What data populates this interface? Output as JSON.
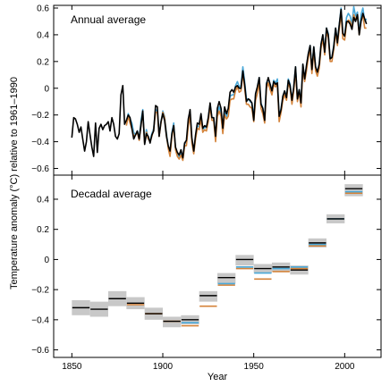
{
  "chart_data": [
    {
      "type": "line",
      "title": "Annual average",
      "ylabel": "Temperature anomaly (°C) relative to 1961–1990",
      "xlabel": "Year",
      "xlim": [
        1840,
        2020
      ],
      "ylim": [
        -0.65,
        0.62
      ],
      "xticks": [
        1850,
        1900,
        1950,
        2000
      ],
      "yticks": [
        -0.6,
        -0.4,
        -0.2,
        0,
        0.2,
        0.4,
        0.6
      ],
      "grid": false,
      "colors": {
        "black": "#000000",
        "orange": "#d4833a",
        "blue": "#4aa8d8"
      },
      "series": [
        {
          "color": "#000000",
          "x": [
            1850,
            1851,
            1852,
            1853,
            1854,
            1855,
            1856,
            1857,
            1858,
            1859,
            1860,
            1861,
            1862,
            1863,
            1864,
            1865,
            1866,
            1867,
            1868,
            1869,
            1870,
            1871,
            1872,
            1873,
            1874,
            1875,
            1876,
            1877,
            1878,
            1879,
            1880,
            1881,
            1882,
            1883,
            1884,
            1885,
            1886,
            1887,
            1888,
            1889,
            1890,
            1891,
            1892,
            1893,
            1894,
            1895,
            1896,
            1897,
            1898,
            1899,
            1900,
            1901,
            1902,
            1903,
            1904,
            1905,
            1906,
            1907,
            1908,
            1909,
            1910,
            1911,
            1912,
            1913,
            1914,
            1915,
            1916,
            1917,
            1918,
            1919,
            1920,
            1921,
            1922,
            1923,
            1924,
            1925,
            1926,
            1927,
            1928,
            1929,
            1930,
            1931,
            1932,
            1933,
            1934,
            1935,
            1936,
            1937,
            1938,
            1939,
            1940,
            1941,
            1942,
            1943,
            1944,
            1945,
            1946,
            1947,
            1948,
            1949,
            1950,
            1951,
            1952,
            1953,
            1954,
            1955,
            1956,
            1957,
            1958,
            1959,
            1960,
            1961,
            1962,
            1963,
            1964,
            1965,
            1966,
            1967,
            1968,
            1969,
            1970,
            1971,
            1972,
            1973,
            1974,
            1975,
            1976,
            1977,
            1978,
            1979,
            1980,
            1981,
            1982,
            1983,
            1984,
            1985,
            1986,
            1987,
            1988,
            1989,
            1990,
            1991,
            1992,
            1993,
            1994,
            1995,
            1996,
            1997,
            1998,
            1999,
            2000,
            2001,
            2002,
            2003,
            2004,
            2005,
            2006,
            2007,
            2008,
            2009,
            2010,
            2011,
            2012
          ],
          "y": [
            -0.37,
            -0.22,
            -0.23,
            -0.27,
            -0.33,
            -0.29,
            -0.38,
            -0.47,
            -0.4,
            -0.25,
            -0.35,
            -0.44,
            -0.51,
            -0.26,
            -0.48,
            -0.3,
            -0.27,
            -0.31,
            -0.28,
            -0.27,
            -0.25,
            -0.32,
            -0.22,
            -0.27,
            -0.36,
            -0.38,
            -0.34,
            -0.05,
            0.02,
            -0.27,
            -0.24,
            -0.2,
            -0.22,
            -0.3,
            -0.38,
            -0.35,
            -0.32,
            -0.38,
            -0.28,
            -0.17,
            -0.42,
            -0.34,
            -0.36,
            -0.41,
            -0.35,
            -0.32,
            -0.13,
            -0.14,
            -0.36,
            -0.25,
            -0.19,
            -0.24,
            -0.36,
            -0.43,
            -0.47,
            -0.34,
            -0.28,
            -0.44,
            -0.48,
            -0.5,
            -0.46,
            -0.52,
            -0.41,
            -0.39,
            -0.23,
            -0.16,
            -0.37,
            -0.47,
            -0.35,
            -0.26,
            -0.27,
            -0.19,
            -0.3,
            -0.28,
            -0.29,
            -0.22,
            -0.11,
            -0.22,
            -0.22,
            -0.36,
            -0.15,
            -0.1,
            -0.15,
            -0.3,
            -0.14,
            -0.19,
            -0.15,
            -0.03,
            -0.01,
            -0.03,
            0.01,
            0.02,
            0.0,
            0.0,
            0.13,
            0.03,
            -0.1,
            -0.08,
            -0.09,
            -0.11,
            -0.24,
            -0.04,
            0.01,
            0.08,
            -0.12,
            -0.15,
            -0.24,
            0.03,
            0.08,
            0.03,
            -0.02,
            0.05,
            0.03,
            0.04,
            -0.21,
            -0.16,
            -0.06,
            -0.02,
            -0.07,
            0.06,
            0.02,
            -0.09,
            0.01,
            0.16,
            -0.08,
            -0.01,
            -0.11,
            0.18,
            0.07,
            0.17,
            0.26,
            0.32,
            0.14,
            0.31,
            0.16,
            0.12,
            0.18,
            0.33,
            0.4,
            0.27,
            0.45,
            0.4,
            0.22,
            0.23,
            0.31,
            0.45,
            0.34,
            0.47,
            0.59,
            0.41,
            0.39,
            0.5,
            0.5,
            0.48,
            0.44,
            0.53,
            0.5,
            0.55,
            0.4,
            0.5,
            0.56,
            0.52,
            0.48
          ]
        },
        {
          "color": "#4aa8d8",
          "x": [
            1880,
            1881,
            1882,
            1883,
            1884,
            1885,
            1886,
            1887,
            1888,
            1889,
            1890,
            1891,
            1892,
            1893,
            1894,
            1895,
            1896,
            1897,
            1898,
            1899,
            1900,
            1901,
            1902,
            1903,
            1904,
            1905,
            1906,
            1907,
            1908,
            1909,
            1910,
            1911,
            1912,
            1913,
            1914,
            1915,
            1916,
            1917,
            1918,
            1919,
            1920,
            1921,
            1922,
            1923,
            1924,
            1925,
            1926,
            1927,
            1928,
            1929,
            1930,
            1931,
            1932,
            1933,
            1934,
            1935,
            1936,
            1937,
            1938,
            1939,
            1940,
            1941,
            1942,
            1943,
            1944,
            1945,
            1946,
            1947,
            1948,
            1949,
            1950,
            1951,
            1952,
            1953,
            1954,
            1955,
            1956,
            1957,
            1958,
            1959,
            1960,
            1961,
            1962,
            1963,
            1964,
            1965,
            1966,
            1967,
            1968,
            1969,
            1970,
            1971,
            1972,
            1973,
            1974,
            1975,
            1976,
            1977,
            1978,
            1979,
            1980,
            1981,
            1982,
            1983,
            1984,
            1985,
            1986,
            1987,
            1988,
            1989,
            1990,
            1991,
            1992,
            1993,
            1994,
            1995,
            1996,
            1997,
            1998,
            1999,
            2000,
            2001,
            2002,
            2003,
            2004,
            2005,
            2006,
            2007,
            2008,
            2009,
            2010,
            2011,
            2012
          ],
          "y": [
            -0.25,
            -0.19,
            -0.23,
            -0.26,
            -0.33,
            -0.35,
            -0.32,
            -0.37,
            -0.24,
            -0.16,
            -0.4,
            -0.31,
            -0.38,
            -0.39,
            -0.34,
            -0.3,
            -0.16,
            -0.17,
            -0.34,
            -0.25,
            -0.17,
            -0.21,
            -0.33,
            -0.44,
            -0.5,
            -0.33,
            -0.26,
            -0.45,
            -0.5,
            -0.52,
            -0.49,
            -0.53,
            -0.41,
            -0.41,
            -0.26,
            -0.19,
            -0.39,
            -0.48,
            -0.37,
            -0.28,
            -0.29,
            -0.21,
            -0.31,
            -0.29,
            -0.3,
            -0.23,
            -0.12,
            -0.22,
            -0.22,
            -0.38,
            -0.18,
            -0.14,
            -0.18,
            -0.32,
            -0.17,
            -0.21,
            -0.18,
            -0.06,
            -0.05,
            -0.05,
            0.02,
            0.05,
            0.01,
            0.02,
            0.16,
            0.05,
            -0.08,
            -0.08,
            -0.1,
            -0.11,
            -0.21,
            -0.05,
            0.01,
            0.08,
            -0.11,
            -0.15,
            -0.22,
            0.04,
            0.07,
            0.03,
            -0.02,
            0.06,
            0.04,
            0.07,
            -0.21,
            -0.15,
            -0.06,
            -0.02,
            -0.06,
            0.07,
            0.03,
            -0.09,
            0.01,
            0.16,
            -0.07,
            -0.01,
            -0.11,
            0.18,
            0.07,
            0.16,
            0.26,
            0.32,
            0.14,
            0.31,
            0.16,
            0.12,
            0.18,
            0.33,
            0.4,
            0.28,
            0.45,
            0.41,
            0.23,
            0.23,
            0.32,
            0.45,
            0.35,
            0.47,
            0.6,
            0.4,
            0.39,
            0.53,
            0.56,
            0.54,
            0.48,
            0.61,
            0.54,
            0.57,
            0.42,
            0.55,
            0.6,
            0.5,
            0.52
          ]
        },
        {
          "color": "#d4833a",
          "x": [
            1880,
            1881,
            1882,
            1883,
            1884,
            1885,
            1886,
            1887,
            1888,
            1889,
            1890,
            1891,
            1892,
            1893,
            1894,
            1895,
            1896,
            1897,
            1898,
            1899,
            1900,
            1901,
            1902,
            1903,
            1904,
            1905,
            1906,
            1907,
            1908,
            1909,
            1910,
            1911,
            1912,
            1913,
            1914,
            1915,
            1916,
            1917,
            1918,
            1919,
            1920,
            1921,
            1922,
            1923,
            1924,
            1925,
            1926,
            1927,
            1928,
            1929,
            1930,
            1931,
            1932,
            1933,
            1934,
            1935,
            1936,
            1937,
            1938,
            1939,
            1940,
            1941,
            1942,
            1943,
            1944,
            1945,
            1946,
            1947,
            1948,
            1949,
            1950,
            1951,
            1952,
            1953,
            1954,
            1955,
            1956,
            1957,
            1958,
            1959,
            1960,
            1961,
            1962,
            1963,
            1964,
            1965,
            1966,
            1967,
            1968,
            1969,
            1970,
            1971,
            1972,
            1973,
            1974,
            1975,
            1976,
            1977,
            1978,
            1979,
            1980,
            1981,
            1982,
            1983,
            1984,
            1985,
            1986,
            1987,
            1988,
            1989,
            1990,
            1991,
            1992,
            1993,
            1994,
            1995,
            1996,
            1997,
            1998,
            1999,
            2000,
            2001,
            2002,
            2003,
            2004,
            2005,
            2006,
            2007,
            2008,
            2009,
            2010,
            2011,
            2012
          ],
          "y": [
            -0.28,
            -0.21,
            -0.26,
            -0.3,
            -0.36,
            -0.35,
            -0.33,
            -0.39,
            -0.27,
            -0.19,
            -0.41,
            -0.33,
            -0.38,
            -0.4,
            -0.36,
            -0.31,
            -0.18,
            -0.18,
            -0.36,
            -0.26,
            -0.18,
            -0.22,
            -0.35,
            -0.45,
            -0.51,
            -0.36,
            -0.28,
            -0.46,
            -0.51,
            -0.53,
            -0.5,
            -0.54,
            -0.43,
            -0.43,
            -0.28,
            -0.21,
            -0.41,
            -0.49,
            -0.38,
            -0.3,
            -0.31,
            -0.23,
            -0.33,
            -0.31,
            -0.32,
            -0.25,
            -0.14,
            -0.24,
            -0.24,
            -0.4,
            -0.21,
            -0.17,
            -0.21,
            -0.34,
            -0.2,
            -0.23,
            -0.21,
            -0.09,
            -0.08,
            -0.08,
            -0.02,
            0.01,
            -0.03,
            -0.02,
            0.11,
            0.0,
            -0.12,
            -0.12,
            -0.14,
            -0.15,
            -0.25,
            -0.09,
            -0.04,
            0.04,
            -0.15,
            -0.19,
            -0.26,
            0.0,
            0.04,
            -0.01,
            -0.05,
            0.03,
            0.01,
            0.04,
            -0.25,
            -0.18,
            -0.09,
            -0.05,
            -0.09,
            0.04,
            0.0,
            -0.12,
            -0.02,
            0.13,
            -0.1,
            -0.03,
            -0.14,
            0.15,
            0.05,
            0.13,
            0.23,
            0.29,
            0.11,
            0.28,
            0.13,
            0.09,
            0.15,
            0.3,
            0.37,
            0.25,
            0.42,
            0.38,
            0.2,
            0.2,
            0.29,
            0.42,
            0.32,
            0.44,
            0.56,
            0.37,
            0.36,
            0.48,
            0.51,
            0.5,
            0.45,
            0.55,
            0.51,
            0.55,
            0.4,
            0.5,
            0.55,
            0.45,
            0.45
          ]
        }
      ]
    },
    {
      "type": "bar",
      "title": "Decadal average",
      "xlabel": "Year",
      "xlim": [
        1840,
        2020
      ],
      "ylim": [
        -0.65,
        0.56
      ],
      "xticks": [
        1850,
        1900,
        1950,
        2000
      ],
      "yticks": [
        -0.6,
        -0.4,
        -0.2,
        0,
        0.2,
        0.4
      ],
      "grid": false,
      "colors": {
        "black": "#000000",
        "orange": "#d4833a",
        "blue": "#4aa8d8",
        "uncertainty": "#c8c8c8"
      },
      "decades": [
        {
          "start": 1850,
          "black": -0.32,
          "ci": [
            -0.37,
            -0.27
          ]
        },
        {
          "start": 1860,
          "black": -0.33,
          "ci": [
            -0.38,
            -0.28
          ]
        },
        {
          "start": 1870,
          "black": -0.26,
          "ci": [
            -0.31,
            -0.21
          ]
        },
        {
          "start": 1880,
          "black": -0.29,
          "orange": -0.3,
          "ci": [
            -0.33,
            -0.25
          ]
        },
        {
          "start": 1890,
          "black": -0.36,
          "orange": -0.36,
          "ci": [
            -0.4,
            -0.32
          ]
        },
        {
          "start": 1900,
          "black": -0.41,
          "orange": -0.41,
          "ci": [
            -0.45,
            -0.38
          ]
        },
        {
          "start": 1910,
          "black": -0.4,
          "orange": -0.44,
          "blue": -0.42,
          "ci": [
            -0.43,
            -0.37
          ]
        },
        {
          "start": 1920,
          "black": -0.24,
          "orange": -0.31,
          "ci": [
            -0.28,
            -0.21
          ]
        },
        {
          "start": 1930,
          "black": -0.12,
          "orange": -0.17,
          "blue": -0.16,
          "ci": [
            -0.16,
            -0.09
          ]
        },
        {
          "start": 1940,
          "black": 0.0,
          "orange": -0.06,
          "blue": -0.05,
          "ci": [
            -0.04,
            0.03
          ]
        },
        {
          "start": 1950,
          "black": -0.06,
          "orange": -0.13,
          "blue": -0.09,
          "ci": [
            -0.09,
            -0.03
          ]
        },
        {
          "start": 1960,
          "black": -0.05,
          "orange": -0.08,
          "blue": -0.06,
          "ci": [
            -0.08,
            -0.02
          ]
        },
        {
          "start": 1970,
          "black": -0.07,
          "orange": -0.06,
          "blue": -0.05,
          "ci": [
            -0.1,
            -0.04
          ]
        },
        {
          "start": 1980,
          "black": 0.11,
          "orange": 0.09,
          "blue": 0.1,
          "ci": [
            0.08,
            0.14
          ]
        },
        {
          "start": 1990,
          "black": 0.27,
          "orange": 0.27,
          "blue": 0.27,
          "ci": [
            0.24,
            0.3
          ]
        },
        {
          "start": 2000,
          "black": 0.47,
          "orange": 0.44,
          "blue": 0.45,
          "ci": [
            0.42,
            0.5
          ]
        }
      ]
    }
  ]
}
